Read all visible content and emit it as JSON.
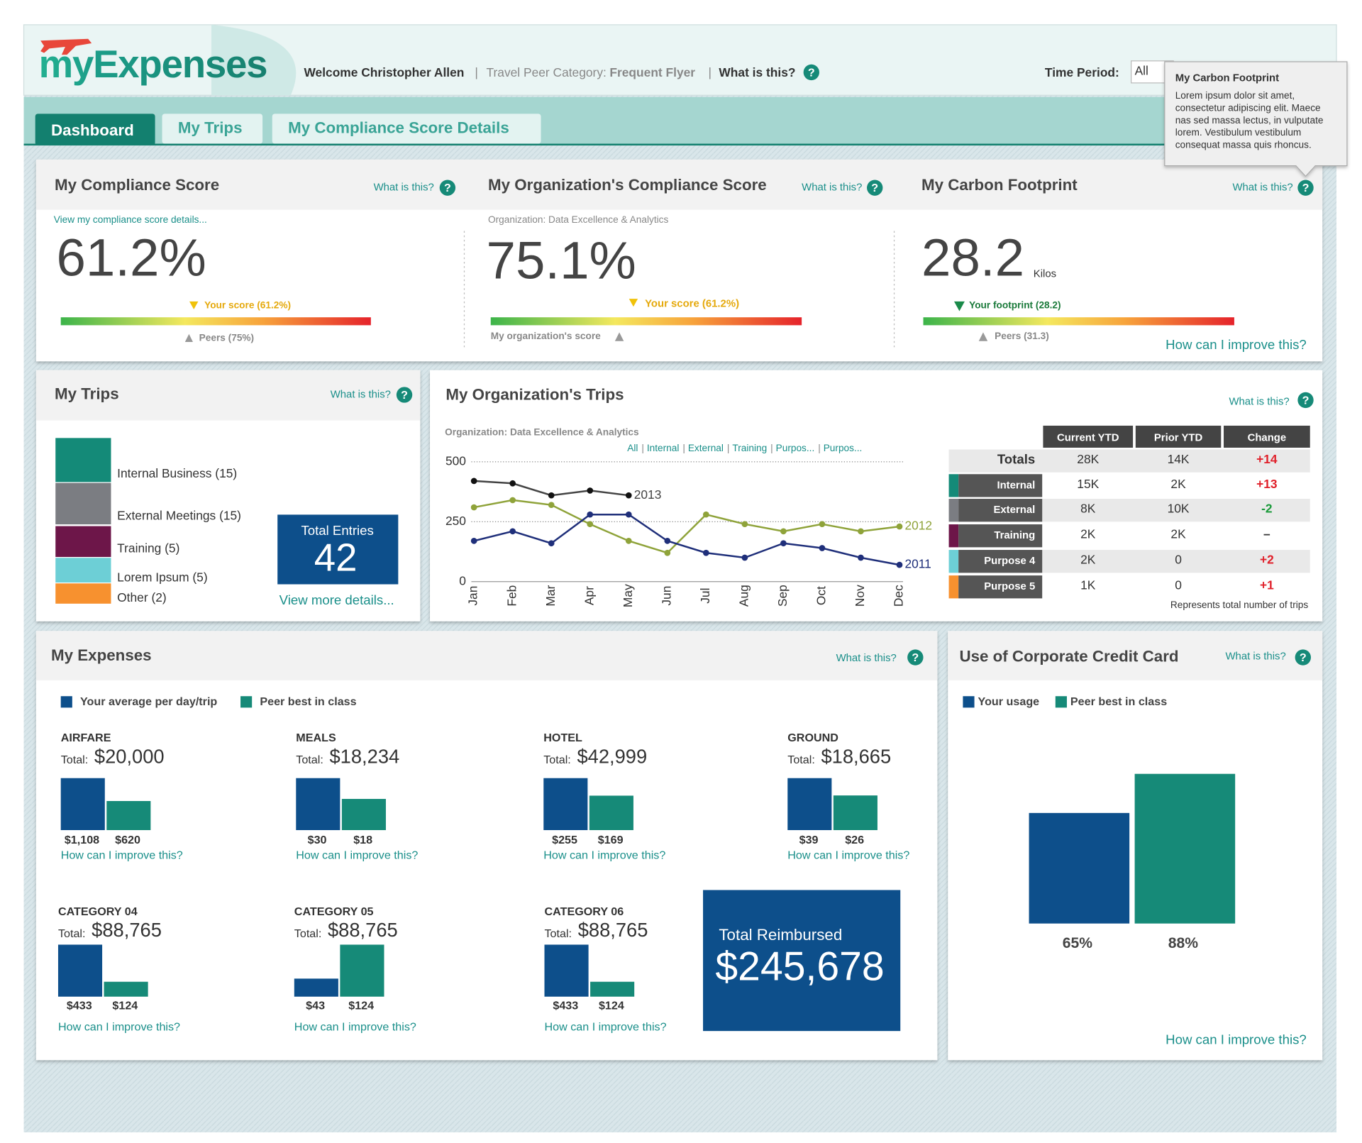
{
  "help_icon": "?",
  "separator": "|",
  "what_is_this": "What is this?",
  "improve": "How can I improve this?",
  "header": {
    "logo": "myExpenses",
    "welcome": "Welcome Christopher Allen",
    "peer_label": "Travel Peer Category:",
    "peer_value": "Frequent Flyer",
    "what": "What is this?",
    "time_label": "Time Period:",
    "time_value": "All"
  },
  "tooltip": {
    "title": "My Carbon Footprint",
    "lines": [
      "Lorem ipsum dolor sit amet,",
      "consectetur adipiscing elit. Maece",
      "nas sed massa lectus, in vulputate",
      "lorem. Vestibulum vestibulum",
      "consequat massa quis rhoncus."
    ]
  },
  "tabs": [
    "Dashboard",
    "My Trips",
    "My Compliance Score Details"
  ],
  "compliance": {
    "my": {
      "title": "My Compliance Score",
      "link": "View my compliance score details...",
      "score": "61.2%",
      "marker": "Your score (61.2%)",
      "peers": "Peers (75%)"
    },
    "org": {
      "title": "My Organization's Compliance Score",
      "org": "Organization: Data Excellence & Analytics",
      "score": "75.1%",
      "marker": "Your score (61.2%)",
      "org_label": "My organization's score"
    },
    "carbon": {
      "title": "My Carbon Footprint",
      "value": "28.2",
      "unit": "Kilos",
      "marker": "Your footprint (28.2)",
      "peers": "Peers (31.3)"
    }
  },
  "my_trips": {
    "title": "My Trips",
    "items": [
      {
        "label": "Internal Business (15)",
        "color": "#148a78"
      },
      {
        "label": "External Meetings (15)",
        "color": "#7b7d82"
      },
      {
        "label": "Training (5)",
        "color": "#6d1649"
      },
      {
        "label": "Lorem Ipsum (5)",
        "color": "#6dcfd6"
      },
      {
        "label": "Other (2)",
        "color": "#f7912f"
      }
    ],
    "total_label": "Total Entries",
    "total": "42",
    "link": "View more details..."
  },
  "org_trips": {
    "title": "My Organization's Trips",
    "org": "Organization: Data Excellence & Analytics",
    "filters": [
      "All",
      "Internal",
      "External",
      "Training",
      "Purpos...",
      "Purpos..."
    ],
    "chart_data": {
      "type": "line",
      "categories": [
        "Jan",
        "Feb",
        "Mar",
        "Apr",
        "May",
        "Jun",
        "Jul",
        "Aug",
        "Sep",
        "Oct",
        "Nov",
        "Dec"
      ],
      "ylim": [
        0,
        500
      ],
      "yticks": [
        0,
        250,
        500
      ],
      "series": [
        {
          "name": "2013",
          "color": "#444444",
          "values": [
            420,
            410,
            360,
            380,
            360,
            null,
            null,
            null,
            null,
            null,
            null,
            null
          ]
        },
        {
          "name": "2012",
          "color": "#8fa33a",
          "values": [
            310,
            340,
            320,
            240,
            170,
            120,
            280,
            240,
            210,
            240,
            210,
            230
          ]
        },
        {
          "name": "2011",
          "color": "#1f2f7a",
          "values": [
            170,
            210,
            160,
            280,
            280,
            170,
            120,
            100,
            160,
            140,
            100,
            70
          ]
        }
      ]
    },
    "table": {
      "columns": [
        "Current YTD",
        "Prior YTD",
        "Change"
      ],
      "rows": [
        {
          "name": "Totals",
          "cells": [
            "28K",
            "14K",
            "+14"
          ]
        },
        {
          "name": "Internal",
          "color": "#148a78",
          "cells": [
            "15K",
            "2K",
            "+13"
          ]
        },
        {
          "name": "External",
          "color": "#7b7d82",
          "cells": [
            "8K",
            "10K",
            "-2"
          ]
        },
        {
          "name": "Training",
          "color": "#6d1649",
          "cells": [
            "2K",
            "2K",
            "–"
          ]
        },
        {
          "name": "Purpose 4",
          "color": "#6dcfd6",
          "cells": [
            "2K",
            "0",
            "+2"
          ]
        },
        {
          "name": "Purpose 5",
          "color": "#f7912f",
          "cells": [
            "1K",
            "0",
            "+1"
          ]
        }
      ],
      "note": "Represents total number of trips"
    }
  },
  "expenses": {
    "title": "My Expenses",
    "legend": [
      {
        "name": "Your average per day/trip",
        "color": "#0d4f8b"
      },
      {
        "name": "Peer best in class",
        "color": "#168a78"
      }
    ],
    "total_label": "Total:",
    "groups": [
      {
        "name": "AIRFARE",
        "total": "$20,000",
        "chart_data": {
          "type": "bar",
          "values": [
            1108,
            620
          ],
          "value_labels": [
            "$1,108",
            "$620"
          ]
        }
      },
      {
        "name": "MEALS",
        "total": "$18,234",
        "chart_data": {
          "type": "bar",
          "values": [
            30,
            18
          ],
          "value_labels": [
            "$30",
            "$18"
          ]
        }
      },
      {
        "name": "HOTEL",
        "total": "$42,999",
        "chart_data": {
          "type": "bar",
          "values": [
            255,
            169
          ],
          "value_labels": [
            "$255",
            "$169"
          ]
        }
      },
      {
        "name": "GROUND",
        "total": "$18,665",
        "chart_data": {
          "type": "bar",
          "values": [
            39,
            26
          ],
          "value_labels": [
            "$39",
            "$26"
          ]
        }
      },
      {
        "name": "CATEGORY 04",
        "total": "$88,765",
        "chart_data": {
          "type": "bar",
          "values": [
            433,
            124
          ],
          "value_labels": [
            "$433",
            "$124"
          ]
        }
      },
      {
        "name": "CATEGORY 05",
        "total": "$88,765",
        "chart_data": {
          "type": "bar",
          "values": [
            43,
            124
          ],
          "value_labels": [
            "$43",
            "$124"
          ]
        }
      },
      {
        "name": "CATEGORY 06",
        "total": "$88,765",
        "chart_data": {
          "type": "bar",
          "values": [
            433,
            124
          ],
          "value_labels": [
            "$433",
            "$124"
          ]
        }
      }
    ],
    "reimbursed_label": "Total Reimbursed",
    "reimbursed": "$245,678"
  },
  "credit_card": {
    "title": "Use of Corporate Credit Card",
    "chart_data": {
      "type": "bar",
      "ylim": [
        0,
        100
      ],
      "series": [
        {
          "name": "Your usage",
          "color": "#0d4f8b",
          "values": [
            65
          ],
          "value_labels": [
            "65%"
          ]
        },
        {
          "name": "Peer best in class",
          "color": "#168a78",
          "values": [
            88
          ],
          "value_labels": [
            "88%"
          ]
        }
      ]
    }
  }
}
